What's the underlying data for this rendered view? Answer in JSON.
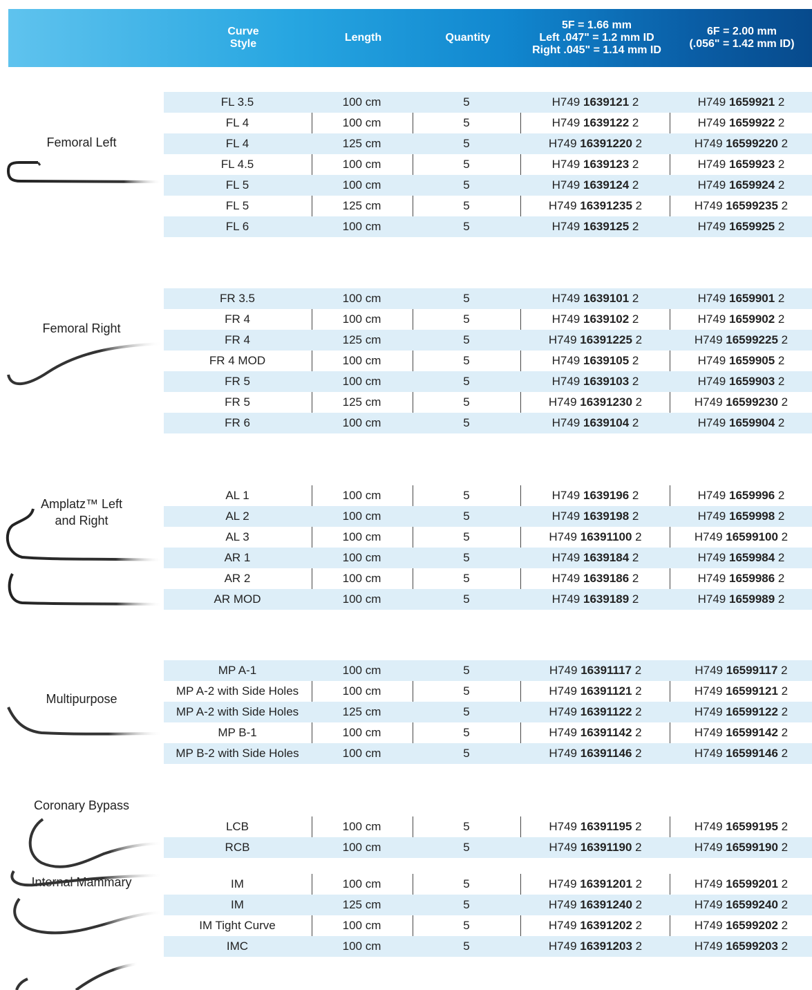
{
  "header": {
    "curve_style": [
      "Curve",
      "Style"
    ],
    "length": "Length",
    "quantity": "Quantity",
    "col_5f": [
      "5F = 1.66 mm",
      "Left .047\" = 1.2 mm ID",
      "Right .045\" = 1.14 mm ID"
    ],
    "col_6f": [
      "6F = 2.00 mm",
      "(.056\" = 1.42 mm ID)"
    ]
  },
  "sections": [
    {
      "title": [
        "Femoral Left"
      ],
      "rows": [
        {
          "style": "FL 3.5",
          "length": "100 cm",
          "qty": "5",
          "p5": {
            "pre": "H749 ",
            "num": "1639121",
            "suf": " 2"
          },
          "p6": {
            "pre": "H749 ",
            "num": "1659921",
            "suf": " 2"
          }
        },
        {
          "style": "FL 4",
          "length": "100 cm",
          "qty": "5",
          "p5": {
            "pre": "H749 ",
            "num": "1639122",
            "suf": " 2"
          },
          "p6": {
            "pre": "H749 ",
            "num": "1659922",
            "suf": " 2"
          }
        },
        {
          "style": "FL 4",
          "length": "125 cm",
          "qty": "5",
          "p5": {
            "pre": "H749 ",
            "num": "16391220",
            "suf": " 2"
          },
          "p6": {
            "pre": "H749 ",
            "num": "16599220",
            "suf": " 2"
          }
        },
        {
          "style": "FL 4.5",
          "length": "100 cm",
          "qty": "5",
          "p5": {
            "pre": "H749 ",
            "num": "1639123",
            "suf": " 2"
          },
          "p6": {
            "pre": "H749 ",
            "num": "1659923",
            "suf": " 2"
          }
        },
        {
          "style": "FL 5",
          "length": "100 cm",
          "qty": "5",
          "p5": {
            "pre": "H749 ",
            "num": "1639124",
            "suf": " 2"
          },
          "p6": {
            "pre": "H749 ",
            "num": "1659924",
            "suf": " 2"
          }
        },
        {
          "style": "FL 5",
          "length": "125 cm",
          "qty": "5",
          "p5": {
            "pre": "H749 ",
            "num": "16391235",
            "suf": " 2"
          },
          "p6": {
            "pre": "H749 ",
            "num": "16599235",
            "suf": " 2"
          }
        },
        {
          "style": "FL 6",
          "length": "100 cm",
          "qty": "5",
          "p5": {
            "pre": "H749 ",
            "num": "1639125",
            "suf": " 2"
          },
          "p6": {
            "pre": "H749 ",
            "num": "1659925",
            "suf": " 2"
          }
        }
      ]
    },
    {
      "title": [
        "Femoral Right"
      ],
      "rows": [
        {
          "style": "FR 3.5",
          "length": "100 cm",
          "qty": "5",
          "p5": {
            "pre": "H749 ",
            "num": "1639101",
            "suf": " 2"
          },
          "p6": {
            "pre": "H749 ",
            "num": "1659901",
            "suf": " 2"
          }
        },
        {
          "style": "FR 4",
          "length": "100 cm",
          "qty": "5",
          "p5": {
            "pre": "H749 ",
            "num": "1639102",
            "suf": " 2"
          },
          "p6": {
            "pre": "H749 ",
            "num": "1659902",
            "suf": " 2"
          }
        },
        {
          "style": "FR 4",
          "length": "125 cm",
          "qty": "5",
          "p5": {
            "pre": "H749 ",
            "num": "16391225",
            "suf": " 2"
          },
          "p6": {
            "pre": "H749 ",
            "num": "16599225",
            "suf": " 2"
          }
        },
        {
          "style": "FR 4 MOD",
          "length": "100 cm",
          "qty": "5",
          "p5": {
            "pre": "H749 ",
            "num": "1639105",
            "suf": " 2"
          },
          "p6": {
            "pre": "H749 ",
            "num": "1659905",
            "suf": " 2"
          }
        },
        {
          "style": "FR 5",
          "length": "100 cm",
          "qty": "5",
          "p5": {
            "pre": "H749 ",
            "num": "1639103",
            "suf": " 2"
          },
          "p6": {
            "pre": "H749 ",
            "num": "1659903",
            "suf": " 2"
          }
        },
        {
          "style": "FR 5",
          "length": "125 cm",
          "qty": "5",
          "p5": {
            "pre": "H749 ",
            "num": "16391230",
            "suf": " 2"
          },
          "p6": {
            "pre": "H749 ",
            "num": "16599230",
            "suf": " 2"
          }
        },
        {
          "style": "FR 6",
          "length": "100 cm",
          "qty": "5",
          "p5": {
            "pre": "H749 ",
            "num": "1639104",
            "suf": " 2"
          },
          "p6": {
            "pre": "H749 ",
            "num": "1659904",
            "suf": " 2"
          }
        }
      ]
    },
    {
      "title": [
        "Amplatz™ Left",
        "and Right"
      ],
      "rows": [
        {
          "style": "AL 1",
          "length": "100 cm",
          "qty": "5",
          "p5": {
            "pre": "H749 ",
            "num": "1639196",
            "suf": " 2"
          },
          "p6": {
            "pre": "H749 ",
            "num": "1659996",
            "suf": " 2"
          }
        },
        {
          "style": "AL 2",
          "length": "100 cm",
          "qty": "5",
          "p5": {
            "pre": "H749 ",
            "num": "1639198",
            "suf": " 2"
          },
          "p6": {
            "pre": "H749 ",
            "num": "1659998",
            "suf": " 2"
          }
        },
        {
          "style": "AL 3",
          "length": "100 cm",
          "qty": "5",
          "p5": {
            "pre": "H749 ",
            "num": "16391100",
            "suf": " 2"
          },
          "p6": {
            "pre": "H749 ",
            "num": "16599100",
            "suf": " 2"
          }
        },
        {
          "style": "AR 1",
          "length": "100 cm",
          "qty": "5",
          "p5": {
            "pre": "H749 ",
            "num": "1639184",
            "suf": " 2"
          },
          "p6": {
            "pre": "H749 ",
            "num": "1659984",
            "suf": " 2"
          }
        },
        {
          "style": "AR 2",
          "length": "100 cm",
          "qty": "5",
          "p5": {
            "pre": "H749 ",
            "num": "1639186",
            "suf": " 2"
          },
          "p6": {
            "pre": "H749 ",
            "num": "1659986",
            "suf": " 2"
          }
        },
        {
          "style": "AR MOD",
          "length": "100 cm",
          "qty": "5",
          "p5": {
            "pre": "H749 ",
            "num": "1639189",
            "suf": " 2"
          },
          "p6": {
            "pre": "H749 ",
            "num": "1659989",
            "suf": " 2"
          }
        }
      ]
    },
    {
      "title": [
        "Multipurpose"
      ],
      "rows": [
        {
          "style": "MP A-1",
          "length": "100 cm",
          "qty": "5",
          "p5": {
            "pre": "H749 ",
            "num": "16391117",
            "suf": " 2"
          },
          "p6": {
            "pre": "H749 ",
            "num": "16599117",
            "suf": " 2"
          }
        },
        {
          "style": "MP A-2 with Side Holes",
          "length": "100 cm",
          "qty": "5",
          "p5": {
            "pre": "H749 ",
            "num": "16391121",
            "suf": " 2"
          },
          "p6": {
            "pre": "H749 ",
            "num": "16599121",
            "suf": " 2"
          }
        },
        {
          "style": "MP A-2 with Side Holes",
          "length": "125 cm",
          "qty": "5",
          "p5": {
            "pre": "H749 ",
            "num": "16391122",
            "suf": " 2"
          },
          "p6": {
            "pre": "H749 ",
            "num": "16599122",
            "suf": " 2"
          }
        },
        {
          "style": "MP B-1",
          "length": "100 cm",
          "qty": "5",
          "p5": {
            "pre": "H749 ",
            "num": "16391142",
            "suf": " 2"
          },
          "p6": {
            "pre": "H749 ",
            "num": "16599142",
            "suf": " 2"
          }
        },
        {
          "style": "MP B-2 with Side Holes",
          "length": "100 cm",
          "qty": "5",
          "p5": {
            "pre": "H749 ",
            "num": "16391146",
            "suf": " 2"
          },
          "p6": {
            "pre": "H749 ",
            "num": "16599146",
            "suf": " 2"
          }
        }
      ]
    },
    {
      "title": [
        "Coronary Bypass"
      ],
      "rows": [
        {
          "style": "LCB",
          "length": "100 cm",
          "qty": "5",
          "p5": {
            "pre": "H749 ",
            "num": "16391195",
            "suf": " 2"
          },
          "p6": {
            "pre": "H749 ",
            "num": "16599195",
            "suf": " 2"
          }
        },
        {
          "style": "RCB",
          "length": "100 cm",
          "qty": "5",
          "p5": {
            "pre": "H749 ",
            "num": "16391190",
            "suf": " 2"
          },
          "p6": {
            "pre": "H749 ",
            "num": "16599190",
            "suf": " 2"
          }
        }
      ]
    },
    {
      "title": [
        "Internal Mammary"
      ],
      "rows": [
        {
          "style": "IM",
          "length": "100 cm",
          "qty": "5",
          "p5": {
            "pre": "H749 ",
            "num": "16391201",
            "suf": " 2"
          },
          "p6": {
            "pre": "H749 ",
            "num": "16599201",
            "suf": " 2"
          }
        },
        {
          "style": "IM",
          "length": "125 cm",
          "qty": "5",
          "p5": {
            "pre": "H749 ",
            "num": "16391240",
            "suf": " 2"
          },
          "p6": {
            "pre": "H749 ",
            "num": "16599240",
            "suf": " 2"
          }
        },
        {
          "style": "IM Tight Curve",
          "length": "100 cm",
          "qty": "5",
          "p5": {
            "pre": "H749 ",
            "num": "16391202",
            "suf": " 2"
          },
          "p6": {
            "pre": "H749 ",
            "num": "16599202",
            "suf": " 2"
          }
        },
        {
          "style": "IMC",
          "length": "100 cm",
          "qty": "5",
          "p5": {
            "pre": "H749 ",
            "num": "16391203",
            "suf": " 2"
          },
          "p6": {
            "pre": "H749 ",
            "num": "16599203",
            "suf": " 2"
          }
        }
      ]
    }
  ]
}
